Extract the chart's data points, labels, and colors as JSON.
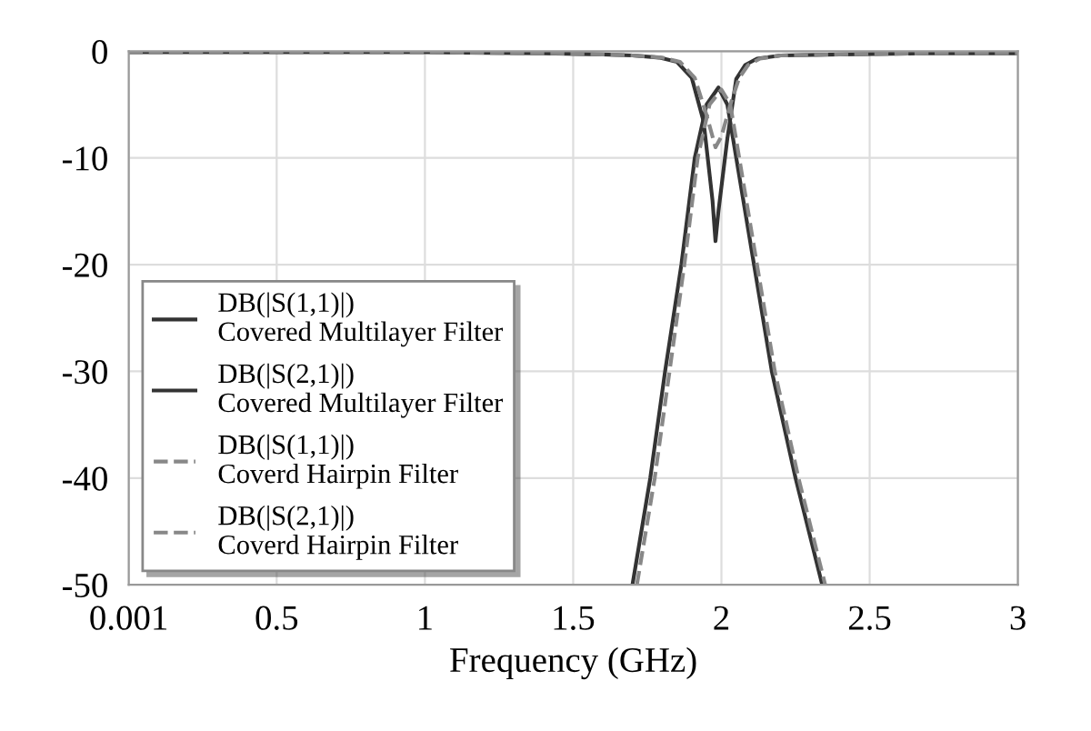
{
  "chart_data": {
    "type": "line",
    "xlabel": "Frequency (GHz)",
    "xlim": [
      0.001,
      3
    ],
    "xticks": [
      0.001,
      0.5,
      1,
      1.5,
      2,
      2.5,
      3
    ],
    "ylim": [
      -50,
      0
    ],
    "yticks": [
      0,
      -10,
      -20,
      -30,
      -40,
      -50
    ],
    "grid": true,
    "legend": "bottom left",
    "marker": "none",
    "series": [
      {
        "name": "DB(|S(1,1)|)\nCovered Multilayer Filter",
        "color": "#333333",
        "line_style": "solid",
        "x": [
          0.001,
          0.5,
          1,
          1.4,
          1.6,
          1.7,
          1.79,
          1.85,
          1.9,
          1.94,
          1.97,
          1.98,
          1.99,
          2.02,
          2.05,
          2.08,
          2.12,
          2.2,
          2.4,
          2.7,
          3
        ],
        "values": [
          -0.1,
          -0.1,
          -0.1,
          -0.2,
          -0.3,
          -0.4,
          -0.6,
          -1,
          -2.5,
          -6.6,
          -14,
          -17.8,
          -15,
          -8.2,
          -2.6,
          -1.3,
          -0.7,
          -0.4,
          -0.3,
          -0.2,
          -0.2
        ]
      },
      {
        "name": "DB(|S(2,1)|)\nCovered Multilayer Filter",
        "color": "#333333",
        "line_style": "solid",
        "x": [
          1.7,
          1.76,
          1.81,
          1.865,
          1.91,
          1.95,
          1.99,
          2.02,
          2.05,
          2.11,
          2.17,
          2.25,
          2.34
        ],
        "values": [
          -50,
          -40,
          -30,
          -20,
          -10,
          -5,
          -3.4,
          -5,
          -10,
          -20,
          -30,
          -40,
          -50
        ]
      },
      {
        "name": "DB(|S(1,1)|)\nCoverd Hairpin Filter",
        "color": "#888888",
        "line_style": "dashed",
        "x": [
          0.001,
          0.5,
          1,
          1.4,
          1.6,
          1.7,
          1.8,
          1.86,
          1.91,
          1.95,
          1.98,
          2.0,
          2.03,
          2.06,
          2.09,
          2.13,
          2.2,
          2.4,
          2.7,
          3
        ],
        "values": [
          -0.1,
          -0.1,
          -0.1,
          -0.2,
          -0.3,
          -0.4,
          -0.6,
          -1,
          -2.5,
          -6,
          -9,
          -8,
          -5,
          -2.5,
          -1.3,
          -0.7,
          -0.4,
          -0.3,
          -0.2,
          -0.2
        ]
      },
      {
        "name": "DB(|S(2,1)|)\nCoverd Hairpin Filter",
        "color": "#888888",
        "line_style": "dashed",
        "x": [
          1.715,
          1.775,
          1.825,
          1.875,
          1.92,
          1.96,
          2.0,
          2.03,
          2.06,
          2.12,
          2.18,
          2.26,
          2.35
        ],
        "values": [
          -50,
          -40,
          -30,
          -20,
          -10,
          -5,
          -3.6,
          -5,
          -10,
          -20,
          -30,
          -40,
          -50
        ]
      }
    ]
  }
}
